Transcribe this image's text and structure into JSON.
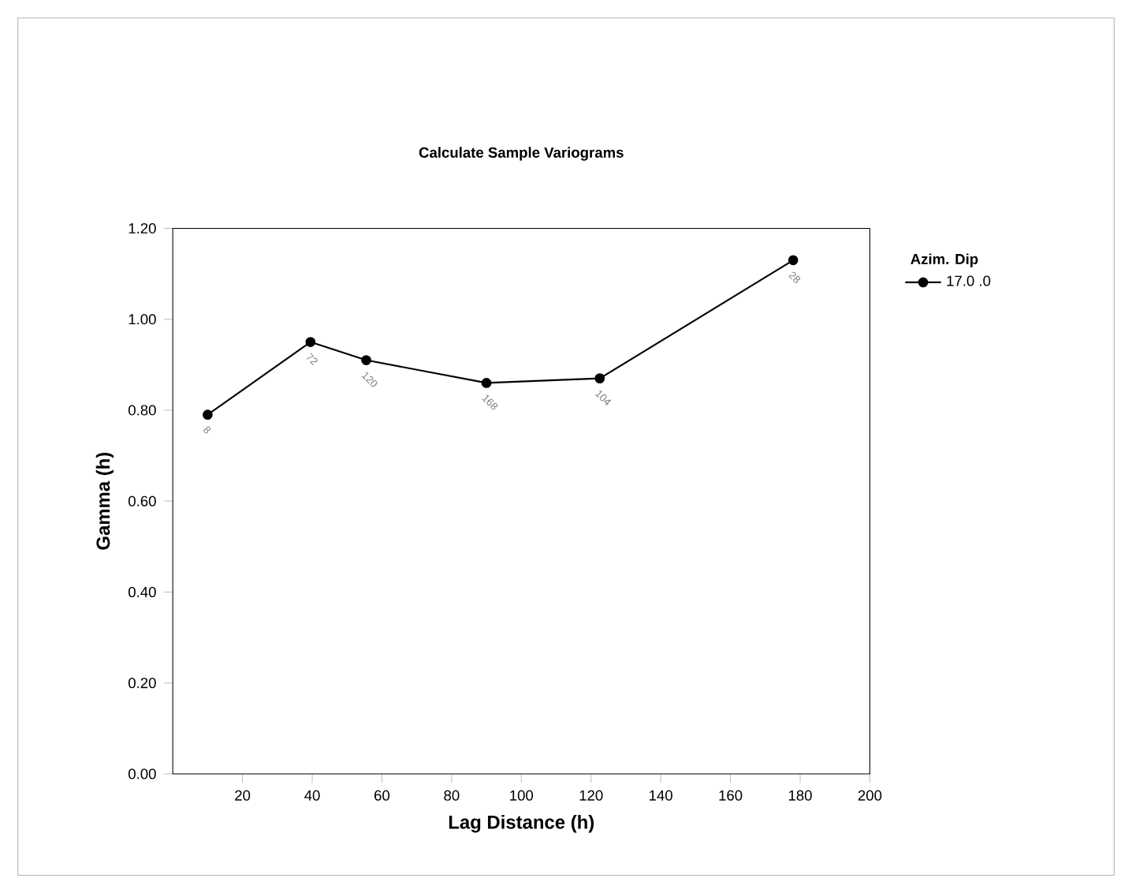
{
  "chart_data": {
    "type": "line",
    "title": "Calculate Sample Variograms",
    "xlabel": "Lag Distance (h)",
    "ylabel": "Gamma (h)",
    "legend_title": "Azim.  Dip",
    "legend": "right",
    "marker": "circle",
    "x": [
      10,
      39.5,
      55.5,
      90,
      122.5,
      178
    ],
    "series": [
      {
        "name": "17.0    .0",
        "color": "#000000",
        "values": [
          0.79,
          0.95,
          0.91,
          0.86,
          0.87,
          1.13
        ]
      }
    ],
    "xlim": [
      0,
      200
    ],
    "xticks": [
      20,
      40,
      60,
      80,
      100,
      120,
      140,
      160,
      180,
      200
    ],
    "ylim": [
      0,
      1.2
    ],
    "yticks": [
      {
        "value": 0,
        "label": "0.00"
      },
      {
        "value": 0.2,
        "label": "0.20"
      },
      {
        "value": 0.4,
        "label": "0.40"
      },
      {
        "value": 0.6,
        "label": "0.60"
      },
      {
        "value": 0.8,
        "label": "0.80"
      },
      {
        "value": 1.0,
        "label": "1.00"
      },
      {
        "value": 1.2,
        "label": "1.20"
      }
    ],
    "annotations": [
      {
        "text": "8",
        "x": 10,
        "y": 0.79
      },
      {
        "text": "72",
        "x": 39.5,
        "y": 0.95
      },
      {
        "text": "120",
        "x": 55.5,
        "y": 0.91
      },
      {
        "text": "168",
        "x": 90,
        "y": 0.86
      },
      {
        "text": "104",
        "x": 122.5,
        "y": 0.87
      },
      {
        "text": "28",
        "x": 178,
        "y": 1.13
      }
    ]
  }
}
